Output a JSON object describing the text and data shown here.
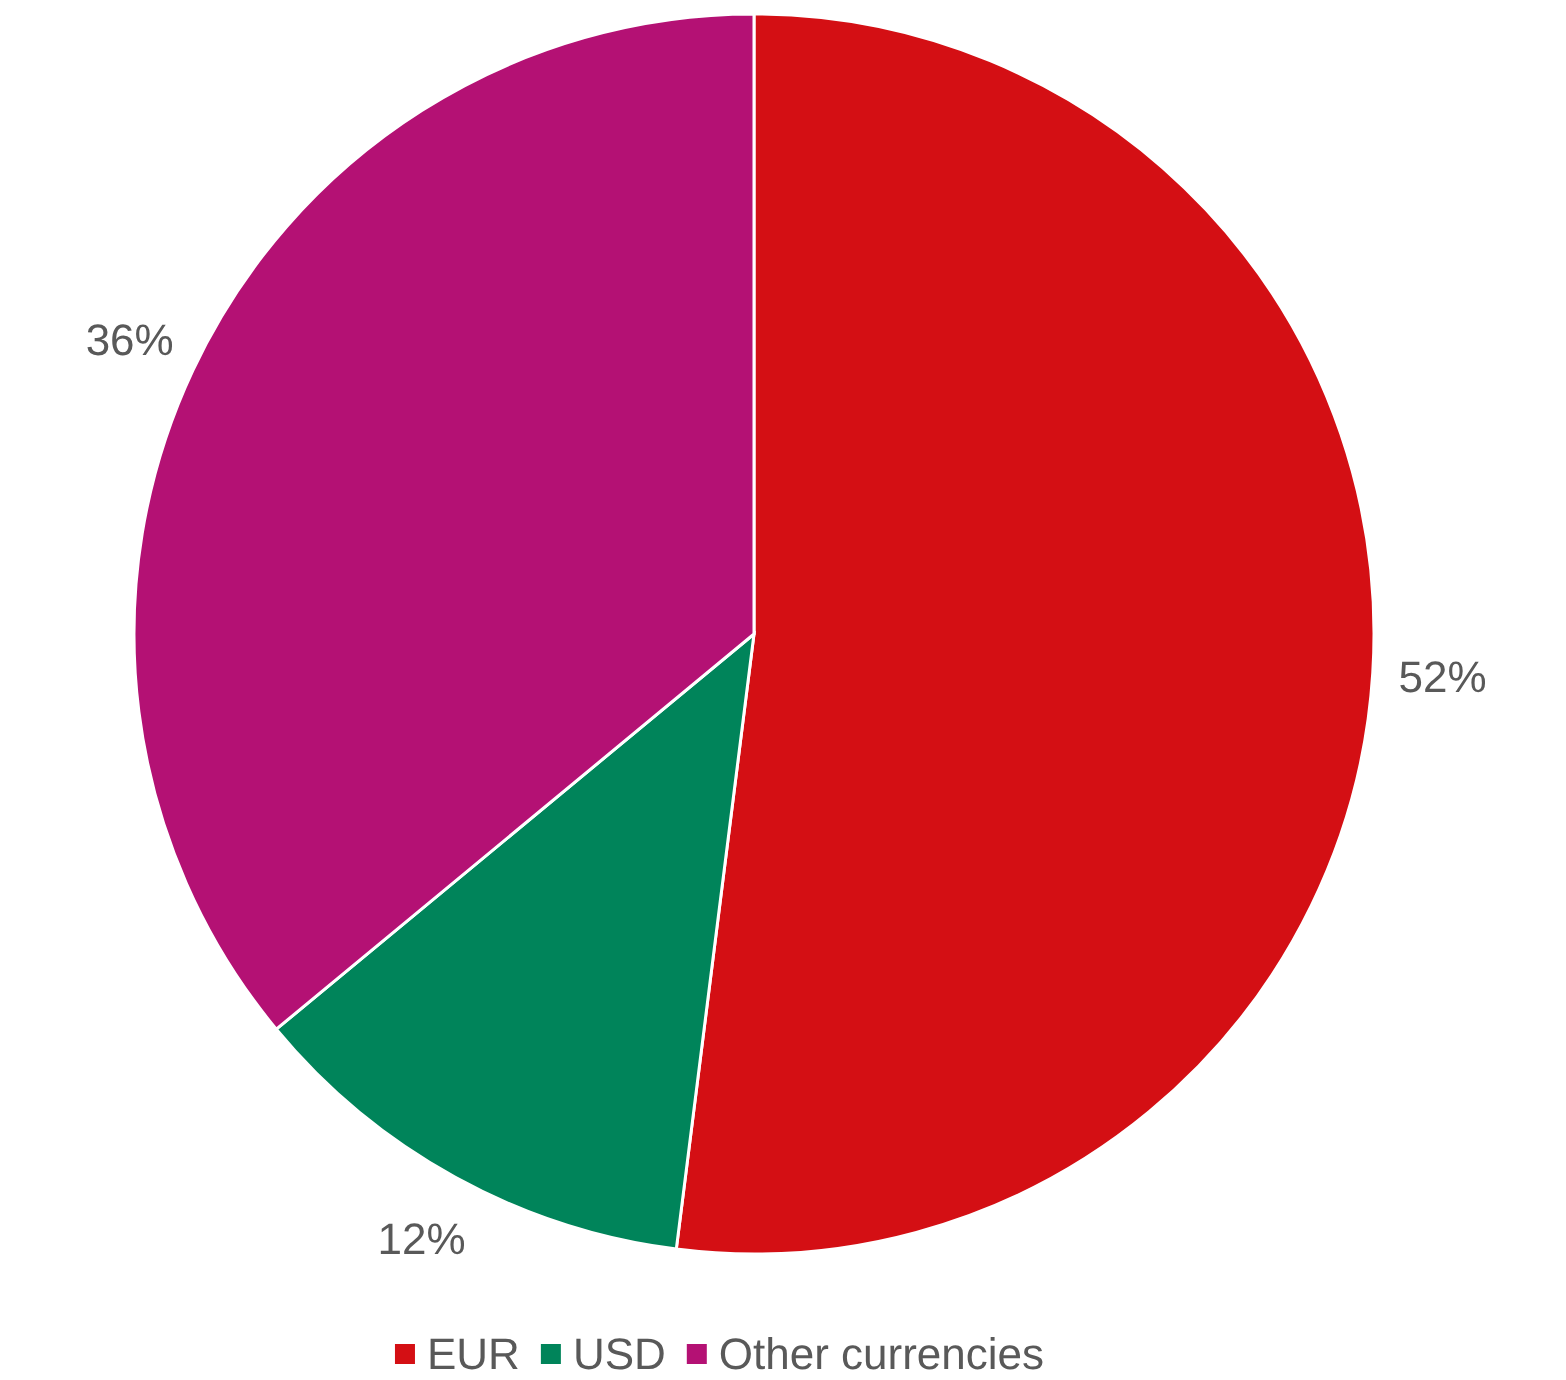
{
  "chart_data": {
    "type": "pie",
    "categories": [
      "EUR",
      "USD",
      "Other currencies"
    ],
    "values": [
      52,
      12,
      36
    ],
    "colors": [
      "#d40f14",
      "#00845a",
      "#b41174"
    ],
    "value_labels": [
      "52%",
      "12%",
      "36%"
    ],
    "legend": "bottom"
  }
}
